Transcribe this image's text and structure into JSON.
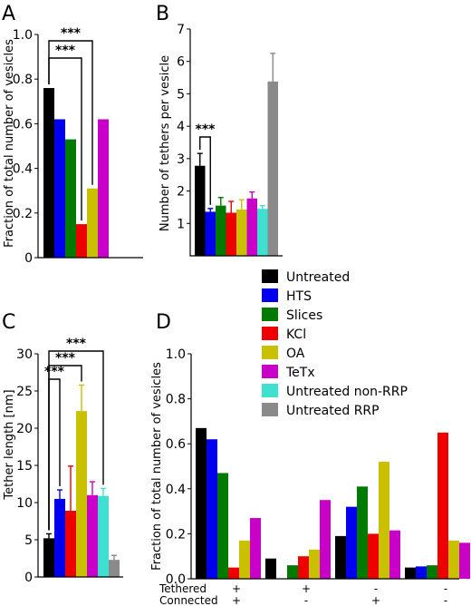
{
  "colors": {
    "Untreated": "#000000",
    "HTS": "#0000ee",
    "Slices": "#007a00",
    "KCl": "#ee0000",
    "OA": "#c8c000",
    "TeTx": "#c800c8",
    "Untreated non-RRP": "#40e0d0",
    "Untreated RRP": "#8a8a8a"
  },
  "legend": {
    "entries": [
      "Untreated",
      "HTS",
      "Slices",
      "KCl",
      "OA",
      "TeTx",
      "Untreated non-RRP",
      "Untreated RRP"
    ]
  },
  "chart_data": [
    {
      "id": "A",
      "type": "bar",
      "panel_letter": "A",
      "ylabel": "Fraction of total number of vesicles",
      "ylim": [
        0,
        1.0
      ],
      "yticks": [
        "0",
        "0.2",
        "0.4",
        "0.6",
        "0.8",
        "1.0"
      ],
      "categories": [
        "Untreated",
        "HTS",
        "Slices",
        "KCl",
        "OA",
        "TeTx"
      ],
      "values": [
        0.76,
        0.62,
        0.53,
        0.15,
        0.31,
        0.62
      ],
      "significance": [
        {
          "from": 0,
          "to": 4,
          "label": "***"
        },
        {
          "from": 0,
          "to": 3,
          "label": "***"
        }
      ]
    },
    {
      "id": "B",
      "type": "bar",
      "panel_letter": "B",
      "ylabel": "Number of tethers per vesicle",
      "ylim": [
        0,
        7
      ],
      "yticks": [
        "1",
        "2",
        "3",
        "4",
        "5",
        "6",
        "7"
      ],
      "categories": [
        "Untreated",
        "HTS",
        "Slices",
        "KCl",
        "OA",
        "TeTx",
        "Untreated non-RRP",
        "Untreated RRP"
      ],
      "values": [
        2.78,
        1.36,
        1.55,
        1.33,
        1.43,
        1.77,
        1.45,
        5.38
      ],
      "errors": [
        0.38,
        0.1,
        0.25,
        0.35,
        0.3,
        0.2,
        0.1,
        0.87
      ],
      "significance": [
        {
          "from": 0,
          "to": 1,
          "label": "***"
        }
      ]
    },
    {
      "id": "C",
      "type": "bar",
      "panel_letter": "C",
      "ylabel": "Tether length [nm]",
      "ylim": [
        0,
        30
      ],
      "yticks": [
        "0",
        "5",
        "10",
        "15",
        "20",
        "25",
        "30"
      ],
      "categories": [
        "Untreated",
        "HTS",
        "KCl",
        "OA",
        "TeTx",
        "Untreated non-RRP",
        "Untreated RRP"
      ],
      "values": [
        5.2,
        10.5,
        8.9,
        22.3,
        11.0,
        10.9,
        2.3
      ],
      "errors": [
        0.6,
        1.2,
        6.0,
        3.5,
        1.8,
        1.0,
        0.6
      ],
      "significance": [
        {
          "from": 0,
          "to": 1,
          "label": "***"
        },
        {
          "from": 0,
          "to": 3,
          "label": "***"
        },
        {
          "from": 0,
          "to": 5,
          "label": "***"
        }
      ]
    },
    {
      "id": "D",
      "type": "bar",
      "panel_letter": "D",
      "ylabel": "Fraction of total number of vesicles",
      "ylim": [
        0,
        1.0
      ],
      "yticks": [
        "0.0",
        "0.2",
        "0.4",
        "0.6",
        "0.8",
        "1.0"
      ],
      "row_labels": [
        "Tethered",
        "Connected"
      ],
      "groups": [
        {
          "tethered": "+",
          "connected": "+",
          "values": [
            0.67,
            0.62,
            0.47,
            0.05,
            0.17,
            0.27
          ]
        },
        {
          "tethered": "+",
          "connected": "-",
          "values": [
            0.09,
            0.0,
            0.06,
            0.1,
            0.13,
            0.35
          ]
        },
        {
          "tethered": "-",
          "connected": "+",
          "values": [
            0.19,
            0.32,
            0.41,
            0.2,
            0.52,
            0.215
          ]
        },
        {
          "tethered": "-",
          "connected": "-",
          "values": [
            0.05,
            0.055,
            0.06,
            0.65,
            0.17,
            0.16
          ]
        }
      ],
      "series": [
        "Untreated",
        "HTS",
        "Slices",
        "KCl",
        "OA",
        "TeTx"
      ]
    }
  ]
}
